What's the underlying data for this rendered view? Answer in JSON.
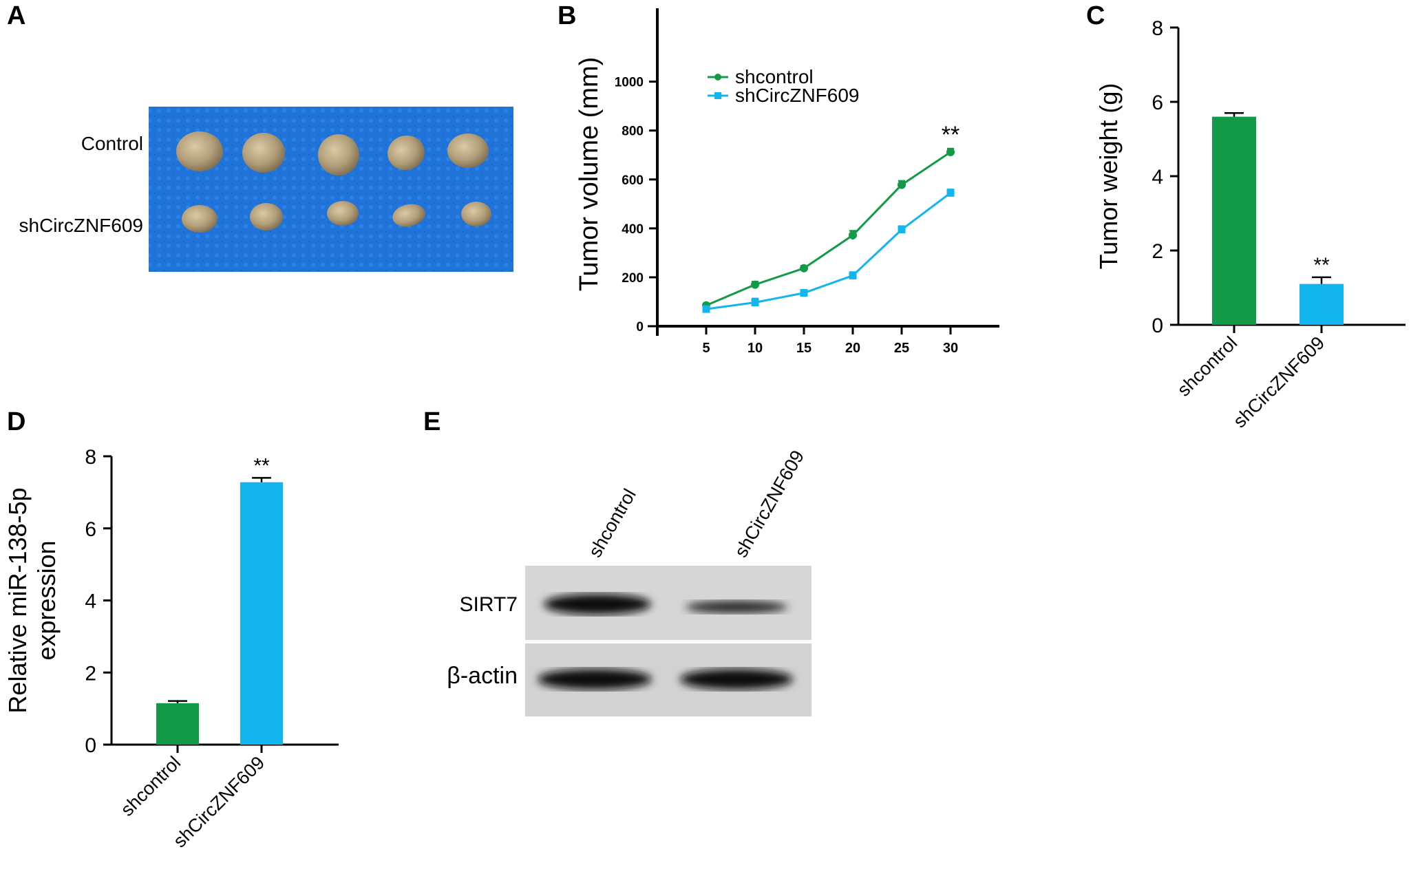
{
  "colors": {
    "shcontrol": "#129a48",
    "shCircZNF609": "#13b5ef",
    "photo_bg": "#1e6fd6",
    "blot_bg": "#d4d4d4"
  },
  "panel_a": {
    "label": "A",
    "rows": [
      "Control",
      "shCircZNF609"
    ]
  },
  "panel_e": {
    "label": "E",
    "lanes": [
      "shcontrol",
      "shCircZNF609"
    ],
    "bands": [
      "SIRT7",
      "β-actin"
    ]
  },
  "chart_data": [
    {
      "id": "B",
      "label": "B",
      "type": "line",
      "ylabel": "Tumor volume (mm)",
      "xlabel": "",
      "x": [
        5,
        10,
        15,
        20,
        25,
        30
      ],
      "xticks": [
        5,
        10,
        15,
        20,
        25,
        30
      ],
      "yticks": [
        0,
        200,
        400,
        600,
        800,
        1000
      ],
      "xlim": [
        0,
        35
      ],
      "ylim": [
        0,
        1300
      ],
      "legend_position": "top-left",
      "series": [
        {
          "name": "shcontrol",
          "values": [
            85,
            170,
            237,
            372,
            578,
            712
          ],
          "errors": [
            8,
            12,
            10,
            18,
            16,
            14
          ],
          "marker": "circle"
        },
        {
          "name": "shCircZNF609",
          "values": [
            70,
            97,
            136,
            207,
            395,
            545
          ],
          "errors": [
            8,
            16,
            12,
            14,
            14,
            14
          ],
          "marker": "square"
        }
      ],
      "annotations": [
        {
          "x": 30,
          "y": 712,
          "text": "**"
        }
      ]
    },
    {
      "id": "C",
      "label": "C",
      "type": "bar",
      "ylabel": "Tumor weight (g)",
      "xlabel": "",
      "categories": [
        "shcontrol",
        "shCircZNF609"
      ],
      "values": [
        5.6,
        1.1
      ],
      "errors": [
        0.1,
        0.18
      ],
      "yticks": [
        0,
        2,
        4,
        6,
        8
      ],
      "ylim": [
        0,
        8
      ],
      "annotations": [
        {
          "category": "shCircZNF609",
          "text": "**"
        }
      ]
    },
    {
      "id": "D",
      "label": "D",
      "type": "bar",
      "ylabel": [
        "Relative miR-138-5p",
        "expression"
      ],
      "xlabel": "",
      "categories": [
        "shcontrol",
        "shCircZNF609"
      ],
      "values": [
        1.15,
        7.28
      ],
      "errors": [
        0.06,
        0.12
      ],
      "yticks": [
        0,
        2,
        4,
        6,
        8
      ],
      "ylim": [
        0,
        8
      ],
      "annotations": [
        {
          "category": "shCircZNF609",
          "text": "**"
        }
      ]
    }
  ]
}
